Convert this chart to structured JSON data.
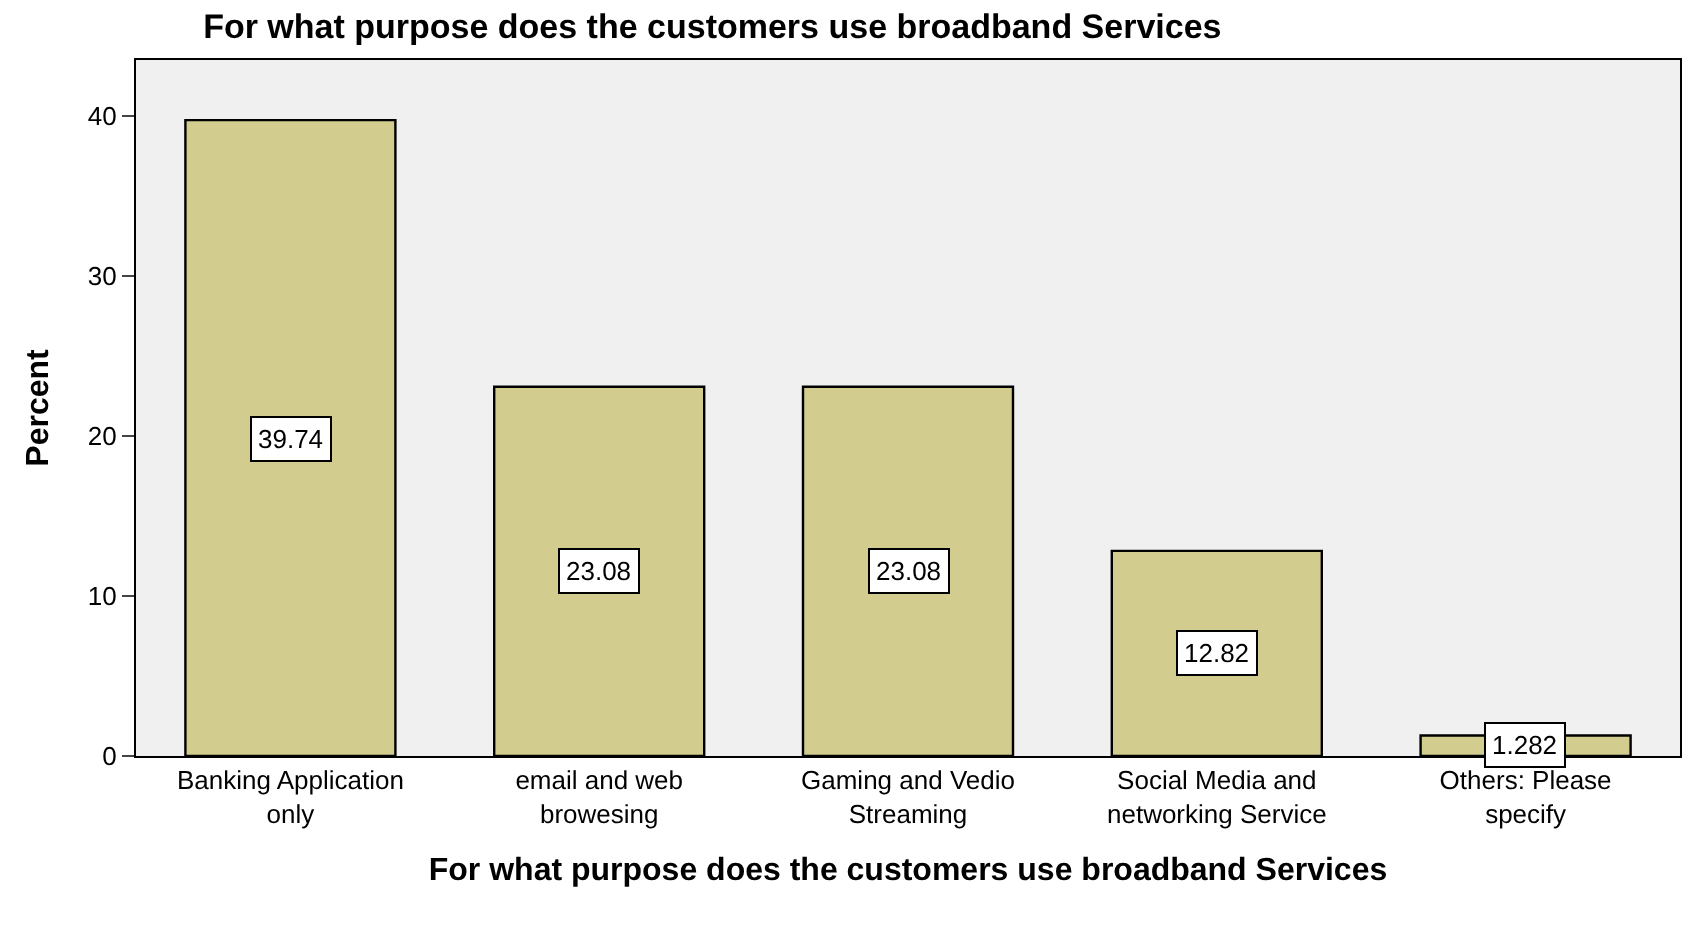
{
  "chart_data": {
    "type": "bar",
    "title": "For what purpose does the customers use broadband Services",
    "xlabel": "For what purpose does the customers use broadband Services",
    "ylabel": "Percent",
    "categories": [
      "Banking Application only",
      "email and web browesing",
      "Gaming and Vedio Streaming",
      "Social Media and networking Service",
      "Others: Please specify"
    ],
    "values": [
      39.74,
      23.08,
      23.08,
      12.82,
      1.282
    ],
    "color": "#d2cc8f",
    "ylim": [
      0,
      43.5
    ],
    "yticks": [
      0,
      10,
      20,
      30,
      40
    ],
    "grid": false,
    "legend": false,
    "data_labels": true
  }
}
